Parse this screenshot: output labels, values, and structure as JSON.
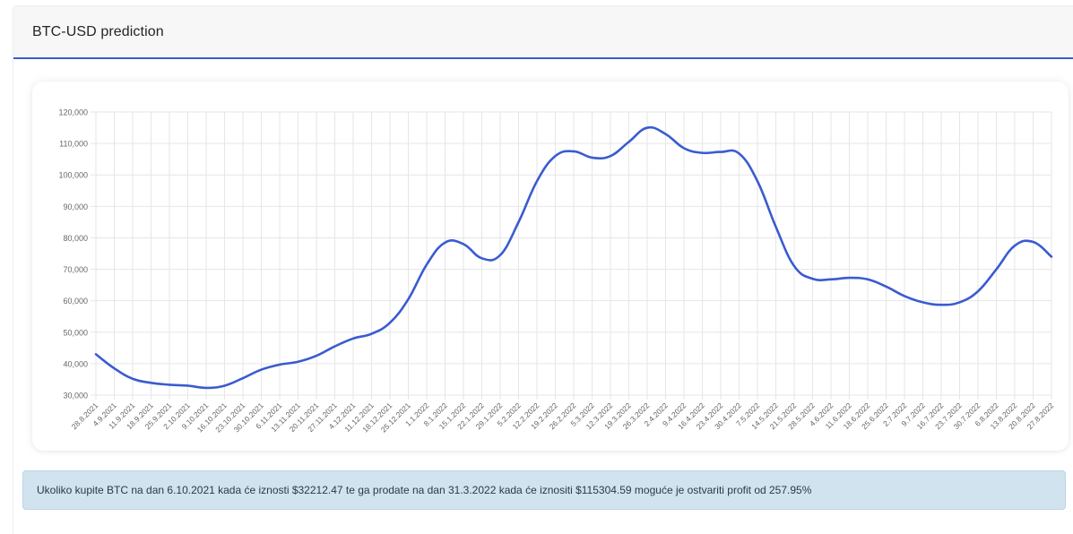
{
  "header": {
    "title": "BTC-USD prediction"
  },
  "colors": {
    "line": "#3a5bd0",
    "header_border": "#3b5ec5",
    "alert_bg": "#d1e3ee"
  },
  "chart_data": {
    "type": "line",
    "title": "",
    "xlabel": "",
    "ylabel": "",
    "ylim": [
      30000,
      120000
    ],
    "yticks": [
      30000,
      40000,
      50000,
      60000,
      70000,
      80000,
      90000,
      100000,
      110000,
      120000
    ],
    "ytick_labels": [
      "30,000",
      "40,000",
      "50,000",
      "60,000",
      "70,000",
      "80,000",
      "90,000",
      "100,000",
      "110,000",
      "120,000"
    ],
    "grid": true,
    "legend": "none",
    "x_tick_labels": [
      "28.8.2021",
      "4.9.2021",
      "11.9.2021",
      "18.9.2021",
      "25.9.2021",
      "2.10.2021",
      "9.10.2021",
      "16.10.2021",
      "23.10.2021",
      "30.10.2021",
      "6.11.2021",
      "13.11.2021",
      "20.11.2021",
      "27.11.2021",
      "4.12.2021",
      "11.12.2021",
      "18.12.2021",
      "25.12.2021",
      "1.1.2022",
      "8.1.2022",
      "15.1.2022",
      "22.1.2022",
      "29.1.2022",
      "5.2.2022",
      "12.2.2022",
      "19.2.2022",
      "26.2.2022",
      "5.3.2022",
      "12.3.2022",
      "19.3.2022",
      "26.3.2022",
      "2.4.2022",
      "9.4.2022",
      "16.4.2022",
      "23.4.2022",
      "30.4.2022",
      "7.5.2022",
      "14.5.2022",
      "21.5.2022",
      "28.5.2022",
      "4.6.2022",
      "11.6.2022",
      "18.6.2022",
      "25.6.2022",
      "2.7.2022",
      "9.7.2022",
      "16.7.2022",
      "23.7.2022",
      "30.7.2022",
      "6.8.2022",
      "13.8.2022",
      "20.8.2022",
      "27.8.2022"
    ],
    "series": [
      {
        "x": [
          "28.8.2021",
          "4.9.2021",
          "11.9.2021",
          "18.9.2021",
          "25.9.2021",
          "2.10.2021",
          "9.10.2021",
          "16.10.2021",
          "23.10.2021",
          "30.10.2021",
          "6.11.2021",
          "13.11.2021",
          "20.11.2021",
          "27.11.2021",
          "4.12.2021",
          "11.12.2021",
          "18.12.2021",
          "25.12.2021",
          "1.1.2022",
          "8.1.2022",
          "15.1.2022",
          "22.1.2022",
          "29.1.2022",
          "5.2.2022",
          "12.2.2022",
          "19.2.2022",
          "26.2.2022",
          "5.3.2022",
          "12.3.2022",
          "19.3.2022",
          "26.3.2022",
          "2.4.2022",
          "9.4.2022",
          "16.4.2022",
          "23.4.2022",
          "30.4.2022",
          "7.5.2022",
          "14.5.2022",
          "21.5.2022",
          "28.5.2022",
          "4.6.2022",
          "11.6.2022",
          "18.6.2022",
          "25.6.2022",
          "2.7.2022",
          "9.7.2022",
          "16.7.2022",
          "23.7.2022",
          "30.7.2022",
          "6.8.2022",
          "13.8.2022",
          "20.8.2022",
          "27.8.2022"
        ],
        "values": [
          43000,
          38500,
          35200,
          33900,
          33300,
          33000,
          32300,
          33000,
          35400,
          38100,
          39700,
          40600,
          42500,
          45500,
          48000,
          49500,
          53000,
          60500,
          71500,
          78500,
          78000,
          73500,
          74500,
          85000,
          98000,
          106000,
          107500,
          105500,
          106000,
          110500,
          115000,
          113000,
          108500,
          107000,
          107300,
          106800,
          98000,
          83500,
          71000,
          67000,
          66800,
          67300,
          66800,
          64500,
          61500,
          59500,
          58700,
          59500,
          63000,
          70000,
          77500,
          78700,
          74000
        ]
      }
    ]
  },
  "alert": {
    "text": "Ukoliko kupite BTC na dan 6.10.2021 kada će iznosti $32212.47 te ga prodate na dan 31.3.2022 kada će iznositi $115304.59 moguće je ostvariti profit od 257.95%"
  }
}
